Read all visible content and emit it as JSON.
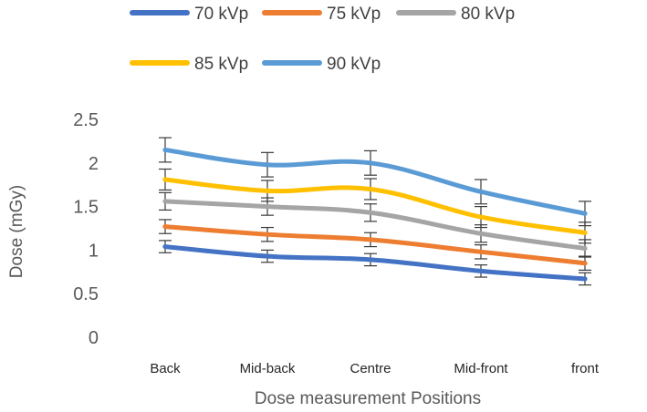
{
  "chart_data": {
    "type": "line",
    "title": "",
    "xlabel": "Dose measurement Positions",
    "ylabel": "Dose (mGy)",
    "categories": [
      "Back",
      "Mid-back",
      "Centre",
      "Mid-front",
      "front"
    ],
    "ylim": [
      0,
      2.5
    ],
    "yticks": [
      "0",
      "0.5",
      "1",
      "1.5",
      "2",
      "2.5"
    ],
    "grid": false,
    "legend_position": "top",
    "series": [
      {
        "name": "70 kVp",
        "color": "#4472C4",
        "values": [
          1.04,
          0.93,
          0.89,
          0.76,
          0.67
        ],
        "error": [
          0.07,
          0.07,
          0.07,
          0.07,
          0.07
        ]
      },
      {
        "name": "75 kVp",
        "color": "#ED7D31",
        "values": [
          1.27,
          1.18,
          1.12,
          0.98,
          0.85
        ],
        "error": [
          0.08,
          0.08,
          0.08,
          0.08,
          0.08
        ]
      },
      {
        "name": "80 kVp",
        "color": "#A5A5A5",
        "values": [
          1.56,
          1.5,
          1.43,
          1.19,
          1.02
        ],
        "error": [
          0.1,
          0.1,
          0.1,
          0.1,
          0.1
        ]
      },
      {
        "name": "85 kVp",
        "color": "#FFC000",
        "values": [
          1.81,
          1.68,
          1.7,
          1.38,
          1.2
        ],
        "error": [
          0.12,
          0.12,
          0.12,
          0.12,
          0.12
        ]
      },
      {
        "name": "90 kVp",
        "color": "#5B9BD5",
        "values": [
          2.15,
          1.98,
          2.0,
          1.67,
          1.42
        ],
        "error": [
          0.14,
          0.14,
          0.14,
          0.14,
          0.14
        ]
      }
    ]
  }
}
